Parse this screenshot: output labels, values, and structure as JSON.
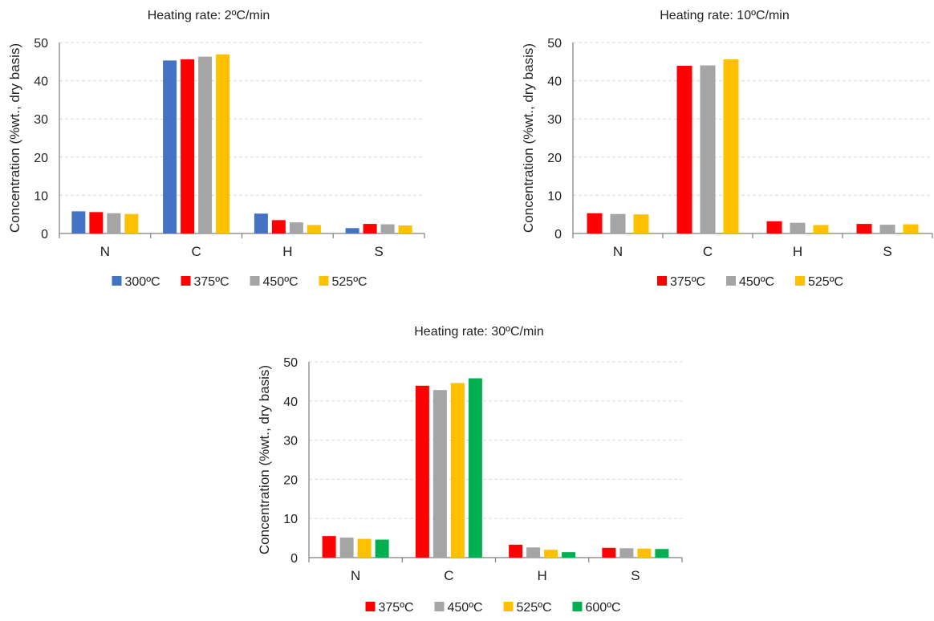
{
  "colors": {
    "300ºC": "#4472C4",
    "375ºC": "#FF0000",
    "450ºC": "#A5A5A5",
    "525ºC": "#FFC000",
    "600ºC": "#00B050"
  },
  "chart_data": [
    {
      "type": "bar",
      "title": "Heating rate: 2ºC/min",
      "ylabel": "Concentration (%wt., dry basis)",
      "xlabel": "",
      "ylim": [
        0,
        50
      ],
      "yticks": [
        "0",
        "10",
        "20",
        "30",
        "40",
        "50"
      ],
      "grid": true,
      "legend_position": "bottom",
      "categories": [
        "N",
        "C",
        "H",
        "S"
      ],
      "series": [
        {
          "name": "300ºC",
          "values": [
            5.8,
            45.3,
            5.2,
            1.4
          ]
        },
        {
          "name": "375ºC",
          "values": [
            5.6,
            45.6,
            3.5,
            2.5
          ]
        },
        {
          "name": "450ºC",
          "values": [
            5.3,
            46.3,
            2.9,
            2.4
          ]
        },
        {
          "name": "525ºC",
          "values": [
            5.1,
            46.9,
            2.2,
            2.1
          ]
        }
      ]
    },
    {
      "type": "bar",
      "title": "Heating rate: 10ºC/min",
      "ylabel": "Concentration (%wt., dry basis)",
      "xlabel": "",
      "ylim": [
        0,
        50
      ],
      "yticks": [
        "0",
        "10",
        "20",
        "30",
        "40",
        "50"
      ],
      "grid": true,
      "legend_position": "bottom",
      "categories": [
        "N",
        "C",
        "H",
        "S"
      ],
      "series": [
        {
          "name": "375ºC",
          "values": [
            5.3,
            43.9,
            3.2,
            2.5
          ]
        },
        {
          "name": "450ºC",
          "values": [
            5.1,
            44.0,
            2.8,
            2.3
          ]
        },
        {
          "name": "525ºC",
          "values": [
            5.0,
            45.6,
            2.2,
            2.4
          ]
        }
      ]
    },
    {
      "type": "bar",
      "title": "Heating rate: 30ºC/min",
      "ylabel": "Concentration (%wt., dry basis)",
      "xlabel": "",
      "ylim": [
        0,
        50
      ],
      "yticks": [
        "0",
        "10",
        "20",
        "30",
        "40",
        "50"
      ],
      "grid": true,
      "legend_position": "bottom",
      "categories": [
        "N",
        "C",
        "H",
        "S"
      ],
      "series": [
        {
          "name": "375ºC",
          "values": [
            5.5,
            43.9,
            3.3,
            2.5
          ]
        },
        {
          "name": "450ºC",
          "values": [
            5.1,
            42.8,
            2.6,
            2.4
          ]
        },
        {
          "name": "525ºC",
          "values": [
            4.8,
            44.6,
            2.0,
            2.3
          ]
        },
        {
          "name": "600ºC",
          "values": [
            4.6,
            45.8,
            1.4,
            2.2
          ]
        }
      ]
    }
  ]
}
